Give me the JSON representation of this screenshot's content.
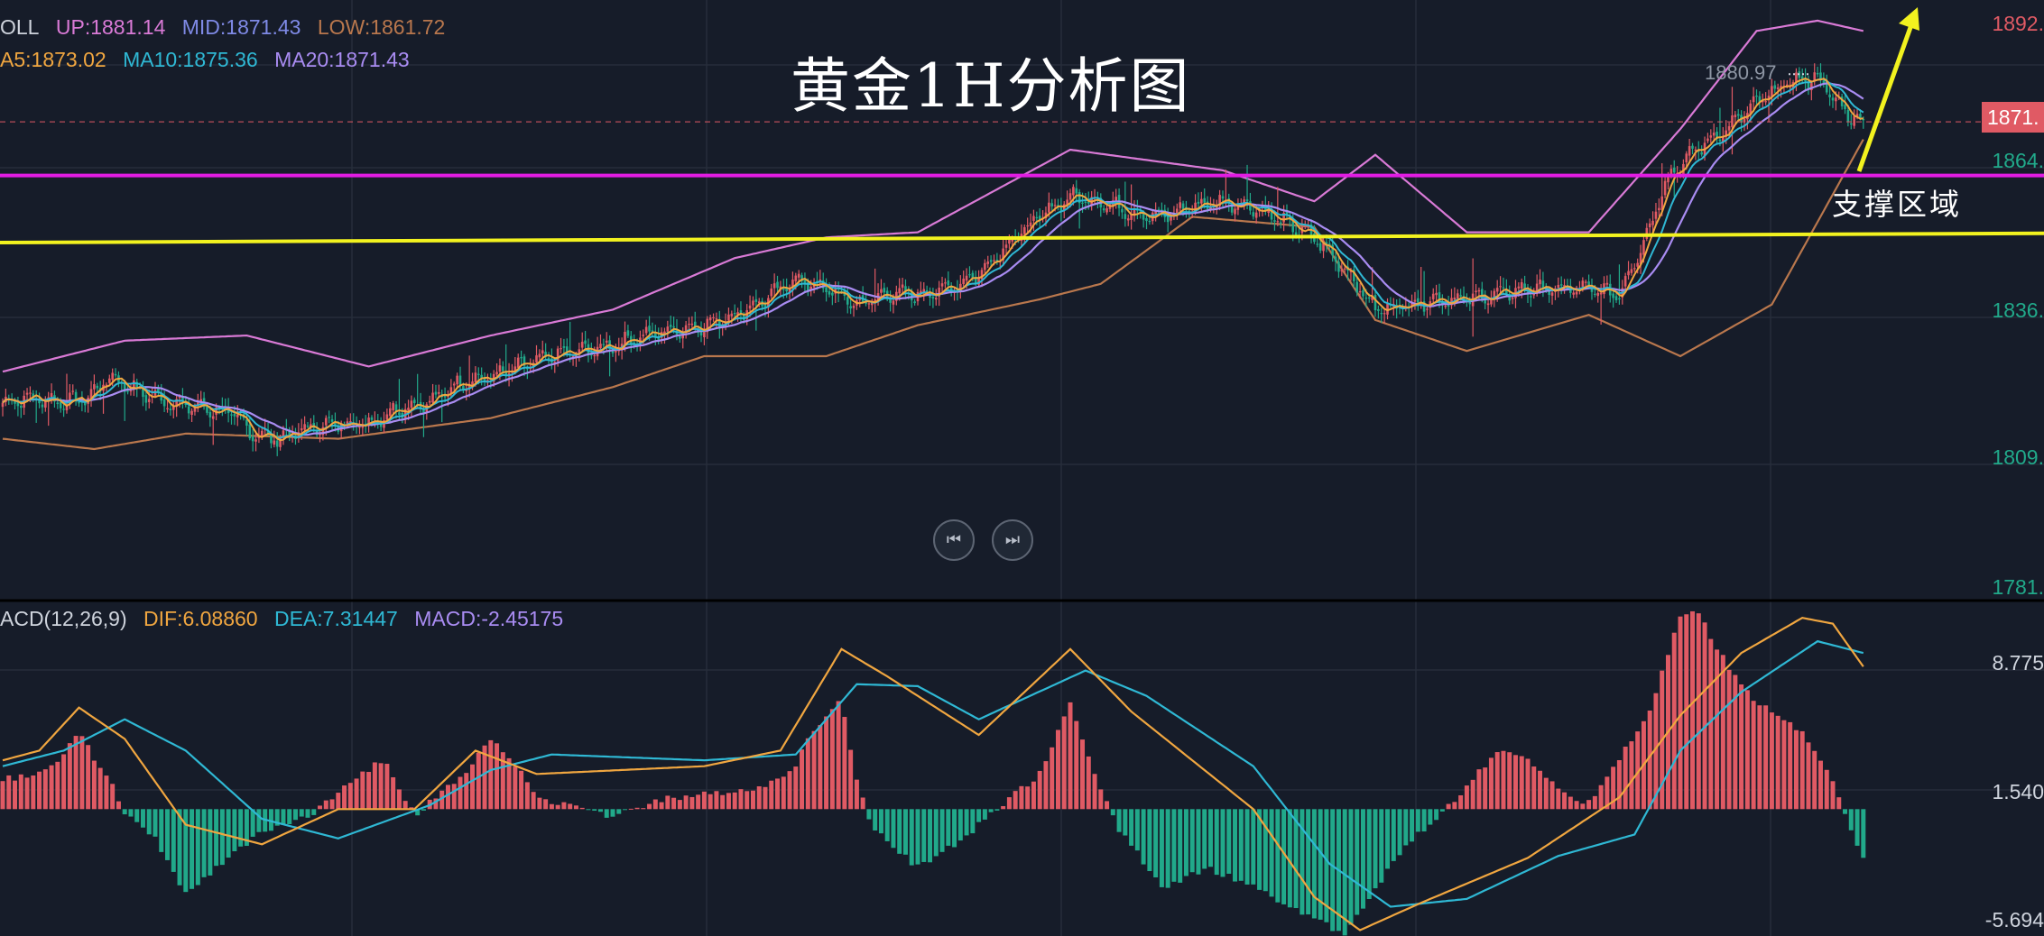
{
  "title": "黄金1H分析图",
  "annotation": "支撑区域",
  "boll_legend": {
    "name": "OLL",
    "up": "UP:1881.14",
    "mid": "MID:1871.43",
    "low": "LOW:1861.72",
    "ma5": "A5:1873.02",
    "ma10": "MA10:1875.36",
    "ma20": "MA20:1871.43"
  },
  "macd_legend": {
    "name": "ACD(12,26,9)",
    "dif": "DIF:6.08860",
    "dea": "DEA:7.31447",
    "macd": "MACD:-2.45175"
  },
  "price_axis_labels": [
    "1892.",
    "1864.",
    "1836.",
    "1809.",
    "1781."
  ],
  "current_price_label": "1871.",
  "high_marker_label": "1880.97",
  "macd_axis_labels": [
    "8.775",
    "1.540",
    "-5.694"
  ],
  "controls": {
    "prev_icon": "skip-previous-icon",
    "next_icon": "skip-next-icon",
    "prev_glyph": "⏮",
    "next_glyph": "⏭"
  },
  "colors": {
    "background": "#161c29",
    "grid": "#262d3b",
    "up_candle": "#e05a64",
    "down_candle": "#21a98a",
    "boll_band": "#d97ad6",
    "boll_low": "#b9774d",
    "ma5": "#f0a640",
    "ma10": "#2fb8d4",
    "ma20": "#a98cf2",
    "resistance_line": "#e21ce3",
    "support_line": "#f2f21f",
    "arrow": "#f2f21f",
    "dif": "#f0a640",
    "dea": "#2fb8d4"
  },
  "chart_data": [
    {
      "type": "candlestick",
      "title": "黄金1H分析图",
      "y_axis_ticks": [
        1892,
        1864,
        1836,
        1809,
        1781
      ],
      "ylim": [
        1779,
        1895
      ],
      "current_price": 1871.4,
      "marked_high": 1880.97,
      "horizontal_lines": [
        {
          "name": "resistance",
          "value": 1861.0,
          "color": "#e21ce3"
        },
        {
          "name": "support",
          "value_start": 1848.0,
          "value_end": 1849.8,
          "color": "#f2f21f"
        }
      ],
      "close_anchors": [
        [
          0,
          1817
        ],
        [
          10,
          1818
        ],
        [
          20,
          1817
        ],
        [
          28,
          1818
        ],
        [
          35,
          1822
        ],
        [
          45,
          1819
        ],
        [
          55,
          1817
        ],
        [
          65,
          1816
        ],
        [
          75,
          1815
        ],
        [
          82,
          1811
        ],
        [
          90,
          1810
        ],
        [
          100,
          1812
        ],
        [
          110,
          1813
        ],
        [
          120,
          1813
        ],
        [
          130,
          1816
        ],
        [
          140,
          1817
        ],
        [
          150,
          1821
        ],
        [
          160,
          1822
        ],
        [
          170,
          1824
        ],
        [
          180,
          1826
        ],
        [
          190,
          1827
        ],
        [
          200,
          1828
        ],
        [
          210,
          1830
        ],
        [
          220,
          1831
        ],
        [
          230,
          1832
        ],
        [
          240,
          1834
        ],
        [
          250,
          1837
        ],
        [
          260,
          1841
        ],
        [
          270,
          1839
        ],
        [
          280,
          1836
        ],
        [
          290,
          1838
        ],
        [
          300,
          1838
        ],
        [
          310,
          1839
        ],
        [
          320,
          1842
        ],
        [
          330,
          1848
        ],
        [
          340,
          1853
        ],
        [
          350,
          1857
        ],
        [
          360,
          1856
        ],
        [
          370,
          1854
        ],
        [
          380,
          1853
        ],
        [
          390,
          1855
        ],
        [
          400,
          1856
        ],
        [
          410,
          1855
        ],
        [
          420,
          1852
        ],
        [
          430,
          1849
        ],
        [
          440,
          1843
        ],
        [
          450,
          1835
        ],
        [
          460,
          1836
        ],
        [
          470,
          1837
        ],
        [
          480,
          1837
        ],
        [
          490,
          1838
        ],
        [
          500,
          1839
        ],
        [
          510,
          1839
        ],
        [
          520,
          1839
        ],
        [
          530,
          1838
        ],
        [
          540,
          1851
        ],
        [
          545,
          1860
        ],
        [
          555,
          1866
        ],
        [
          565,
          1870
        ],
        [
          575,
          1875
        ],
        [
          585,
          1879
        ],
        [
          595,
          1880
        ],
        [
          600,
          1876
        ],
        [
          605,
          1873
        ],
        [
          610,
          1871.4
        ]
      ],
      "bands": {
        "boll_up_anchors": [
          [
            0,
            1823
          ],
          [
            40,
            1829
          ],
          [
            80,
            1830
          ],
          [
            120,
            1824
          ],
          [
            160,
            1830
          ],
          [
            200,
            1835
          ],
          [
            240,
            1845
          ],
          [
            270,
            1849
          ],
          [
            300,
            1850
          ],
          [
            350,
            1866
          ],
          [
            400,
            1862
          ],
          [
            430,
            1856
          ],
          [
            450,
            1865
          ],
          [
            480,
            1850
          ],
          [
            520,
            1850
          ],
          [
            550,
            1870
          ],
          [
            575,
            1889
          ],
          [
            595,
            1891
          ],
          [
            610,
            1889
          ]
        ],
        "boll_low_anchors": [
          [
            0,
            1810
          ],
          [
            30,
            1808
          ],
          [
            60,
            1811
          ],
          [
            110,
            1810
          ],
          [
            160,
            1814
          ],
          [
            200,
            1820
          ],
          [
            230,
            1826
          ],
          [
            270,
            1826
          ],
          [
            300,
            1832
          ],
          [
            340,
            1837
          ],
          [
            360,
            1840
          ],
          [
            390,
            1853
          ],
          [
            430,
            1851
          ],
          [
            450,
            1833
          ],
          [
            480,
            1827
          ],
          [
            520,
            1834
          ],
          [
            550,
            1826
          ],
          [
            580,
            1836
          ],
          [
            610,
            1868
          ]
        ]
      }
    },
    {
      "type": "bar",
      "title": "MACD(12,26,9)",
      "y_axis_ticks": [
        8.775,
        1.54,
        -5.694
      ],
      "ylim": [
        -6.5,
        10.5
      ],
      "dif_last": 6.0886,
      "dea_last": 7.31447,
      "macd_last": -2.45175,
      "dif_anchors": [
        [
          0,
          2.5
        ],
        [
          12,
          3.0
        ],
        [
          25,
          5.2
        ],
        [
          40,
          3.6
        ],
        [
          60,
          -0.8
        ],
        [
          85,
          -1.8
        ],
        [
          110,
          0.0
        ],
        [
          135,
          0.0
        ],
        [
          155,
          3.0
        ],
        [
          175,
          1.8
        ],
        [
          230,
          2.2
        ],
        [
          255,
          3.0
        ],
        [
          275,
          8.2
        ],
        [
          290,
          6.8
        ],
        [
          320,
          3.8
        ],
        [
          350,
          8.2
        ],
        [
          370,
          5.0
        ],
        [
          410,
          0.0
        ],
        [
          430,
          -4.5
        ],
        [
          445,
          -6.2
        ],
        [
          465,
          -4.8
        ],
        [
          500,
          -2.5
        ],
        [
          530,
          0.6
        ],
        [
          550,
          4.8
        ],
        [
          570,
          8.0
        ],
        [
          590,
          9.8
        ],
        [
          600,
          9.5
        ],
        [
          610,
          7.3
        ]
      ],
      "dea_anchors": [
        [
          0,
          2.2
        ],
        [
          20,
          3.0
        ],
        [
          40,
          4.6
        ],
        [
          60,
          3.0
        ],
        [
          85,
          -0.5
        ],
        [
          110,
          -1.5
        ],
        [
          140,
          0.2
        ],
        [
          160,
          2.0
        ],
        [
          180,
          2.8
        ],
        [
          230,
          2.5
        ],
        [
          260,
          2.8
        ],
        [
          280,
          6.4
        ],
        [
          300,
          6.3
        ],
        [
          320,
          4.6
        ],
        [
          355,
          7.1
        ],
        [
          375,
          5.8
        ],
        [
          410,
          2.2
        ],
        [
          435,
          -2.8
        ],
        [
          455,
          -5.0
        ],
        [
          480,
          -4.6
        ],
        [
          510,
          -2.4
        ],
        [
          535,
          -1.3
        ],
        [
          550,
          3.0
        ],
        [
          570,
          6.0
        ],
        [
          595,
          8.6
        ],
        [
          610,
          8.0
        ]
      ],
      "hist_anchors": [
        [
          0,
          1.5
        ],
        [
          15,
          2.0
        ],
        [
          25,
          3.8
        ],
        [
          35,
          1.5
        ],
        [
          40,
          -0.3
        ],
        [
          50,
          -1.5
        ],
        [
          60,
          -4.4
        ],
        [
          70,
          -3.0
        ],
        [
          85,
          -1.2
        ],
        [
          100,
          -0.4
        ],
        [
          115,
          1.5
        ],
        [
          125,
          2.6
        ],
        [
          135,
          -0.3
        ],
        [
          150,
          1.6
        ],
        [
          160,
          3.5
        ],
        [
          170,
          2.0
        ],
        [
          175,
          0.5
        ],
        [
          185,
          0.3
        ],
        [
          200,
          -0.4
        ],
        [
          215,
          0.5
        ],
        [
          235,
          0.8
        ],
        [
          250,
          1.2
        ],
        [
          260,
          2.2
        ],
        [
          265,
          4.0
        ],
        [
          275,
          5.6
        ],
        [
          280,
          1.5
        ],
        [
          285,
          -1.0
        ],
        [
          300,
          -3.0
        ],
        [
          315,
          -1.5
        ],
        [
          330,
          0.5
        ],
        [
          340,
          1.8
        ],
        [
          350,
          5.5
        ],
        [
          360,
          1.0
        ],
        [
          365,
          -0.8
        ],
        [
          380,
          -4.0
        ],
        [
          395,
          -3.0
        ],
        [
          410,
          -4.0
        ],
        [
          425,
          -5.2
        ],
        [
          440,
          -6.4
        ],
        [
          460,
          -1.8
        ],
        [
          470,
          -0.5
        ],
        [
          480,
          1.2
        ],
        [
          490,
          3.0
        ],
        [
          500,
          2.5
        ],
        [
          510,
          1.0
        ],
        [
          520,
          0.3
        ],
        [
          540,
          5.0
        ],
        [
          550,
          10.0
        ],
        [
          555,
          10.2
        ],
        [
          565,
          7.5
        ],
        [
          575,
          5.5
        ],
        [
          590,
          4.0
        ],
        [
          598,
          2.0
        ],
        [
          603,
          0.2
        ],
        [
          605,
          -0.9
        ],
        [
          610,
          -2.45
        ]
      ]
    }
  ]
}
